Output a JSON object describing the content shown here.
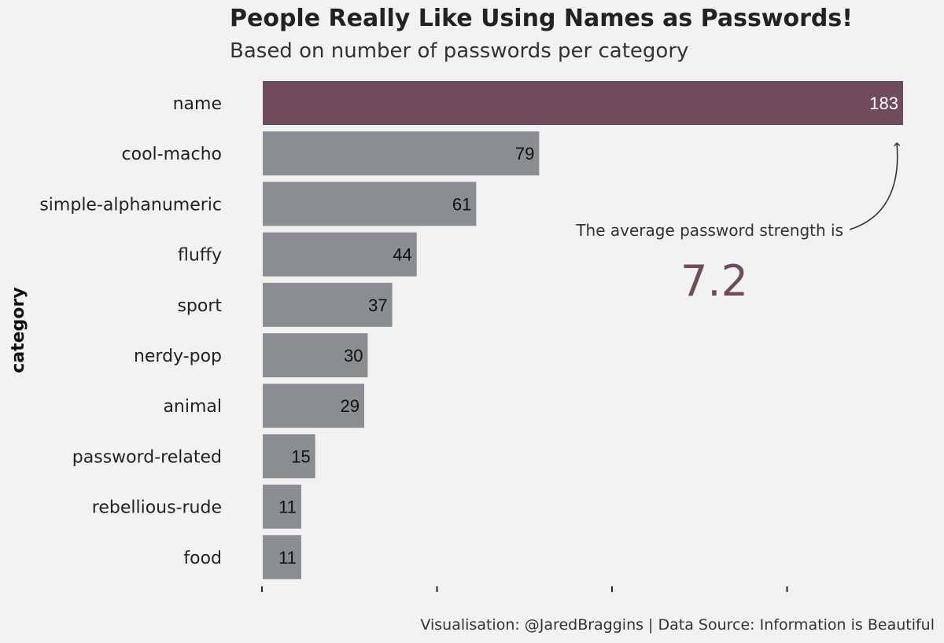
{
  "chart_data": {
    "type": "bar",
    "orientation": "horizontal",
    "title": "People Really Like Using Names as Passwords!",
    "subtitle": "Based on number of passwords per category",
    "ylabel": "category",
    "xlabel": "",
    "categories": [
      "name",
      "cool-macho",
      "simple-alphanumeric",
      "fluffy",
      "sport",
      "nerdy-pop",
      "animal",
      "password-related",
      "rebellious-rude",
      "food"
    ],
    "values": [
      183,
      79,
      61,
      44,
      37,
      30,
      29,
      15,
      11,
      11
    ],
    "xlim": [
      0,
      185
    ],
    "x_ticks": [
      0,
      50,
      100,
      150
    ],
    "grid": false,
    "highlight": {
      "category": "name",
      "color": "#704b5e"
    },
    "bar_color": "#8a8d91",
    "annotation": {
      "text": "The average password strength is",
      "value": "7.2",
      "value_color": "#704b5e"
    }
  },
  "caption": "Visualisation: @JaredBraggins  |  Data Source: Information is Beautiful"
}
